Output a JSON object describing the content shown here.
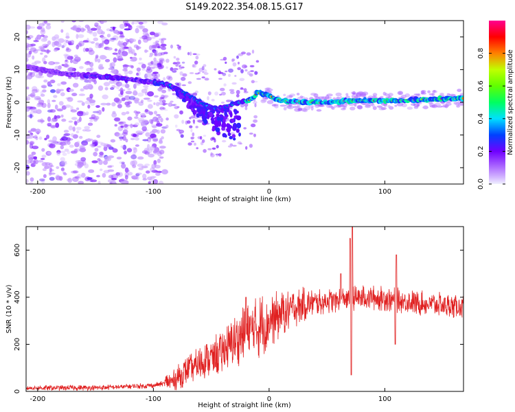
{
  "figure": {
    "title": "S149.2022.354.08.15.G17"
  },
  "chart_data": [
    {
      "type": "heatmap",
      "xlabel": "Height of straight line (km)",
      "ylabel": "Frequency (Hz)",
      "xlim": [
        -210,
        168
      ],
      "ylim": [
        -25,
        25
      ],
      "x_ticks": [
        -200,
        -100,
        0,
        100
      ],
      "y_ticks": [
        -20,
        -10,
        0,
        10,
        20
      ],
      "colorbar": {
        "label": "Normalized spectral amplitude",
        "range": [
          0,
          1
        ],
        "ticks": [
          0.0,
          0.2,
          0.4,
          0.6,
          0.8
        ],
        "colors": [
          "#f0f0ff",
          "#b070ff",
          "#7000ff",
          "#0040ff",
          "#00e0ff",
          "#00ff60",
          "#c0ff00",
          "#ff8000",
          "#ff0000",
          "#ff0090"
        ]
      },
      "ridge": {
        "x": [
          -210,
          -190,
          -170,
          -150,
          -130,
          -110,
          -95,
          -85,
          -75,
          -65,
          -55,
          -45,
          -35,
          -25,
          -15,
          -10,
          0,
          10,
          30,
          50,
          70,
          90,
          110,
          130,
          150,
          168
        ],
        "y": [
          11,
          9.5,
          8.5,
          8,
          7.5,
          6.5,
          6,
          5,
          3,
          1,
          -1,
          -2,
          -1,
          0,
          1,
          3,
          2,
          0.5,
          0,
          0,
          0.5,
          0.5,
          0.5,
          0.8,
          1,
          1.2
        ]
      }
    },
    {
      "type": "line",
      "xlabel": "Height of straight line (km)",
      "ylabel": "SNR (10 * v/v)",
      "xlim": [
        -210,
        168
      ],
      "ylim": [
        0,
        700
      ],
      "x_ticks": [
        -200,
        -100,
        0,
        100
      ],
      "y_ticks": [
        0,
        200,
        400,
        600
      ],
      "color": "#e02020",
      "trend": {
        "x": [
          -210,
          -150,
          -100,
          -85,
          -70,
          -55,
          -40,
          -25,
          -10,
          0,
          15,
          30,
          45,
          60,
          80,
          100,
          120,
          140,
          168
        ],
        "y": [
          15,
          15,
          25,
          40,
          90,
          130,
          170,
          230,
          270,
          300,
          340,
          370,
          380,
          390,
          400,
          395,
          380,
          370,
          360
        ]
      },
      "spikes": [
        {
          "x": -20,
          "y": 400
        },
        {
          "x": 62,
          "y": 500
        },
        {
          "x": 70,
          "y": 650
        },
        {
          "x": 72,
          "y": 700
        },
        {
          "x": 71,
          "y": 70
        },
        {
          "x": 110,
          "y": 580
        },
        {
          "x": 109,
          "y": 200
        }
      ]
    }
  ]
}
